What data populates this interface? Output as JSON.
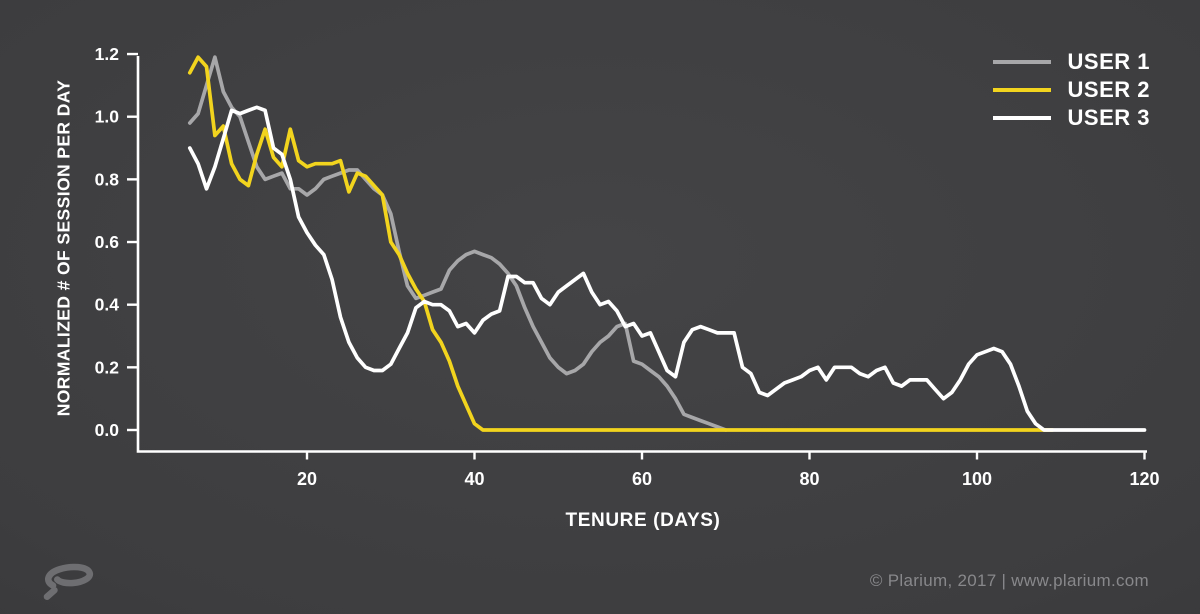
{
  "page": {
    "background_color": "#3e3e40",
    "text_color": "#ffffff"
  },
  "chart_data": {
    "type": "line",
    "title": "",
    "xlabel": "TENURE (DAYS)",
    "ylabel": "NORMALIZED # OF SESSION PER DAY",
    "xlim": [
      0,
      121
    ],
    "ylim": [
      0,
      1.2
    ],
    "x_ticks": [
      20,
      40,
      60,
      80,
      100,
      120
    ],
    "y_ticks": [
      0.0,
      0.2,
      0.4,
      0.6,
      0.8,
      1.0,
      1.2
    ],
    "grid": false,
    "legend_position": "top-right",
    "axis_color": "#ffffff",
    "series": [
      {
        "name": "USER 1",
        "color": "#a7a7a9",
        "x": [
          6,
          7,
          8,
          9,
          10,
          11,
          12,
          13,
          14,
          15,
          16,
          17,
          18,
          19,
          20,
          21,
          22,
          23,
          24,
          25,
          26,
          27,
          28,
          29,
          30,
          31,
          32,
          33,
          34,
          35,
          36,
          37,
          38,
          39,
          40,
          41,
          42,
          43,
          44,
          45,
          46,
          47,
          48,
          49,
          50,
          51,
          52,
          53,
          54,
          55,
          56,
          57,
          58,
          59,
          60,
          61,
          62,
          63,
          64,
          65,
          66,
          67,
          68,
          69,
          70
        ],
        "y": [
          0.98,
          1.01,
          1.1,
          1.19,
          1.08,
          1.03,
          1.0,
          0.92,
          0.84,
          0.8,
          0.81,
          0.82,
          0.77,
          0.77,
          0.75,
          0.77,
          0.8,
          0.81,
          0.82,
          0.83,
          0.83,
          0.8,
          0.77,
          0.75,
          0.69,
          0.57,
          0.46,
          0.42,
          0.43,
          0.44,
          0.45,
          0.51,
          0.54,
          0.56,
          0.57,
          0.56,
          0.55,
          0.53,
          0.5,
          0.46,
          0.39,
          0.33,
          0.28,
          0.23,
          0.2,
          0.18,
          0.19,
          0.21,
          0.25,
          0.28,
          0.3,
          0.33,
          0.34,
          0.22,
          0.21,
          0.19,
          0.17,
          0.14,
          0.1,
          0.05,
          0.04,
          0.03,
          0.02,
          0.01,
          0.0
        ]
      },
      {
        "name": "USER 2",
        "color": "#f2d41e",
        "x": [
          6,
          7,
          8,
          9,
          10,
          11,
          12,
          13,
          14,
          15,
          16,
          17,
          18,
          19,
          20,
          21,
          22,
          23,
          24,
          25,
          26,
          27,
          28,
          29,
          30,
          31,
          32,
          33,
          34,
          35,
          36,
          37,
          38,
          39,
          40,
          41,
          45,
          50,
          55,
          60,
          65,
          70,
          75,
          80,
          85,
          90,
          95,
          100,
          105,
          109
        ],
        "y": [
          1.14,
          1.19,
          1.16,
          0.94,
          0.97,
          0.85,
          0.8,
          0.78,
          0.88,
          0.96,
          0.87,
          0.84,
          0.96,
          0.86,
          0.84,
          0.85,
          0.85,
          0.85,
          0.86,
          0.76,
          0.82,
          0.81,
          0.78,
          0.75,
          0.6,
          0.56,
          0.5,
          0.45,
          0.41,
          0.32,
          0.28,
          0.22,
          0.14,
          0.08,
          0.02,
          0.0,
          0.0,
          0.0,
          0.0,
          0.0,
          0.0,
          0.0,
          0.0,
          0.0,
          0.0,
          0.0,
          0.0,
          0.0,
          0.0,
          0.0
        ]
      },
      {
        "name": "USER 3",
        "color": "#ffffff",
        "x": [
          6,
          7,
          8,
          9,
          10,
          11,
          12,
          13,
          14,
          15,
          16,
          17,
          18,
          19,
          20,
          21,
          22,
          23,
          24,
          25,
          26,
          27,
          28,
          29,
          30,
          31,
          32,
          33,
          34,
          35,
          36,
          37,
          38,
          39,
          40,
          41,
          42,
          43,
          44,
          45,
          46,
          47,
          48,
          49,
          50,
          51,
          52,
          53,
          54,
          55,
          56,
          57,
          58,
          59,
          60,
          61,
          62,
          63,
          64,
          65,
          66,
          67,
          68,
          69,
          70,
          71,
          72,
          73,
          74,
          75,
          76,
          77,
          78,
          79,
          80,
          81,
          82,
          83,
          84,
          85,
          86,
          87,
          88,
          89,
          90,
          91,
          92,
          93,
          94,
          95,
          96,
          97,
          98,
          99,
          100,
          101,
          102,
          103,
          104,
          105,
          106,
          107,
          108,
          110,
          112,
          114,
          116,
          118,
          120
        ],
        "y": [
          0.9,
          0.85,
          0.77,
          0.84,
          0.93,
          1.02,
          1.01,
          1.02,
          1.03,
          1.02,
          0.9,
          0.88,
          0.8,
          0.68,
          0.63,
          0.59,
          0.56,
          0.48,
          0.36,
          0.28,
          0.23,
          0.2,
          0.19,
          0.19,
          0.21,
          0.26,
          0.31,
          0.39,
          0.41,
          0.4,
          0.4,
          0.38,
          0.33,
          0.34,
          0.31,
          0.35,
          0.37,
          0.38,
          0.49,
          0.49,
          0.47,
          0.47,
          0.42,
          0.4,
          0.44,
          0.46,
          0.48,
          0.5,
          0.44,
          0.4,
          0.41,
          0.38,
          0.33,
          0.34,
          0.3,
          0.31,
          0.25,
          0.19,
          0.17,
          0.28,
          0.32,
          0.33,
          0.32,
          0.31,
          0.31,
          0.31,
          0.2,
          0.18,
          0.12,
          0.11,
          0.13,
          0.15,
          0.16,
          0.17,
          0.19,
          0.2,
          0.16,
          0.2,
          0.2,
          0.2,
          0.18,
          0.17,
          0.19,
          0.2,
          0.15,
          0.14,
          0.16,
          0.16,
          0.16,
          0.13,
          0.1,
          0.12,
          0.16,
          0.21,
          0.24,
          0.25,
          0.26,
          0.25,
          0.21,
          0.14,
          0.06,
          0.02,
          0.0,
          0.0,
          0.0,
          0.0,
          0.0,
          0.0,
          0.0
        ]
      }
    ]
  },
  "footer": {
    "logo": "plarium-logo",
    "logo_color": "#6e6e71",
    "copyright": "© Plarium, 2017 | www.plarium.com"
  }
}
